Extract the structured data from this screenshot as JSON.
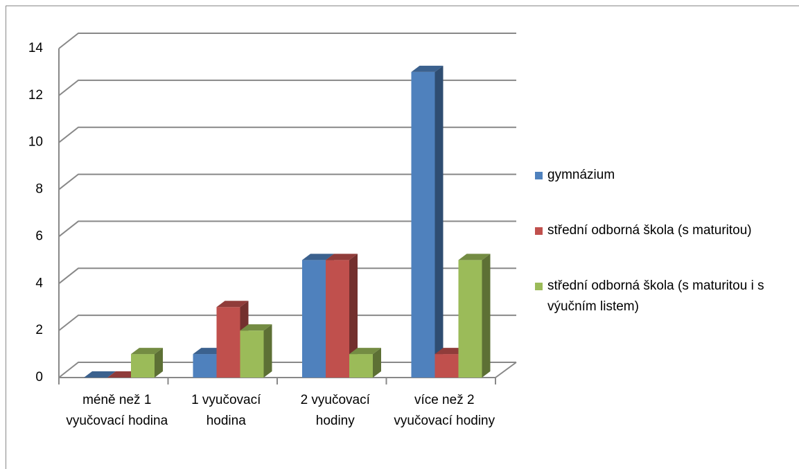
{
  "chart_data": {
    "type": "bar3d",
    "categories": [
      "méně než 1 vyučovací hodina",
      "1 vyučovací hodina",
      "2 vyučovací hodiny",
      "více než 2 vyučovací hodiny"
    ],
    "series": [
      {
        "name": "gymnázium",
        "color": "#4f81bd",
        "values": [
          0,
          1,
          5,
          13
        ]
      },
      {
        "name": "střední odborná škola (s maturitou)",
        "color": "#c0504d",
        "values": [
          0,
          3,
          5,
          1
        ]
      },
      {
        "name": "střední odborná škola (s maturitou i s výučním listem)",
        "color": "#9bbb59",
        "values": [
          1,
          2,
          1,
          5
        ]
      }
    ],
    "ylim": [
      0,
      14
    ],
    "yticks": [
      0,
      2,
      4,
      6,
      8,
      10,
      12,
      14
    ],
    "grid": true,
    "legend": "right"
  }
}
